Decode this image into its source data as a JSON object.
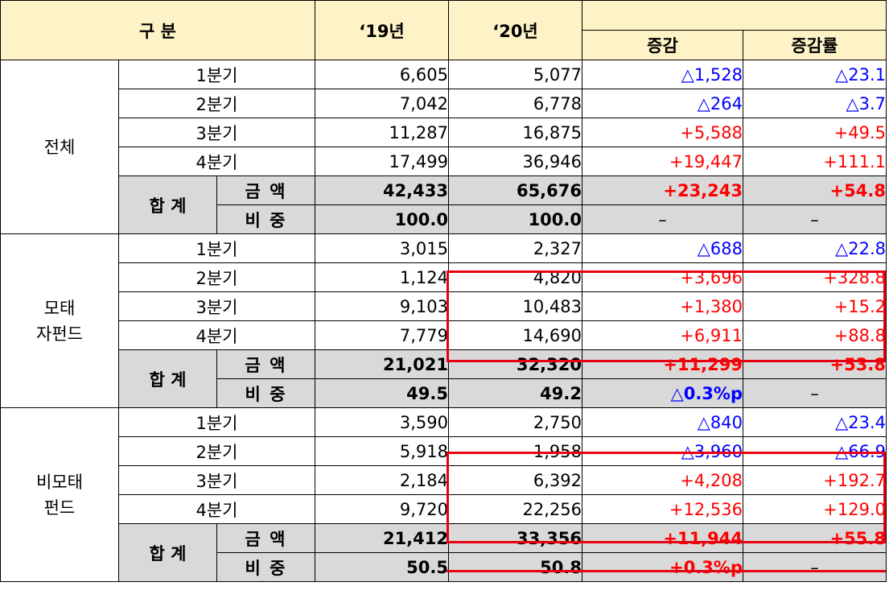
{
  "header": {
    "category": "구 분",
    "year19": "‘19년",
    "year20": "‘20년",
    "change": "증감",
    "change_rate": "증감률"
  },
  "sum_label": "합 계",
  "amount_label": "금 액",
  "share_label": "비 중",
  "groups": [
    {
      "name": "전체",
      "quarters": [
        {
          "label": "1분기",
          "y19": "6,605",
          "y20": "5,077",
          "chg": "△1,528",
          "rate": "△23.1"
        },
        {
          "label": "2분기",
          "y19": "7,042",
          "y20": "6,778",
          "chg": "△264",
          "rate": "△3.7"
        },
        {
          "label": "3분기",
          "y19": "11,287",
          "y20": "16,875",
          "chg": "+5,588",
          "rate": "+49.5"
        },
        {
          "label": "4분기",
          "y19": "17,499",
          "y20": "36,946",
          "chg": "+19,447",
          "rate": "+111.1"
        }
      ],
      "amount": {
        "y19": "42,433",
        "y20": "65,676",
        "chg": "+23,243",
        "rate": "+54.8"
      },
      "share": {
        "y19": "100.0",
        "y20": "100.0",
        "chg": "–",
        "rate": "–"
      }
    },
    {
      "name_line1": "모태",
      "name_line2": "자펀드",
      "quarters": [
        {
          "label": "1분기",
          "y19": "3,015",
          "y20": "2,327",
          "chg": "△688",
          "rate": "△22.8"
        },
        {
          "label": "2분기",
          "y19": "1,124",
          "y20": "4,820",
          "chg": "+3,696",
          "rate": "+328.8"
        },
        {
          "label": "3분기",
          "y19": "9,103",
          "y20": "10,483",
          "chg": "+1,380",
          "rate": "+15.2"
        },
        {
          "label": "4분기",
          "y19": "7,779",
          "y20": "14,690",
          "chg": "+6,911",
          "rate": "+88.8"
        }
      ],
      "amount": {
        "y19": "21,021",
        "y20": "32,320",
        "chg": "+11,299",
        "rate": "+53.8"
      },
      "share": {
        "y19": "49.5",
        "y20": "49.2",
        "chg": "△0.3%p",
        "rate": "–"
      }
    },
    {
      "name_line1": "비모태",
      "name_line2": "펀드",
      "quarters": [
        {
          "label": "1분기",
          "y19": "3,590",
          "y20": "2,750",
          "chg": "△840",
          "rate": "△23.4"
        },
        {
          "label": "2분기",
          "y19": "5,918",
          "y20": "1,958",
          "chg": "△3,960",
          "rate": "△66.9"
        },
        {
          "label": "3분기",
          "y19": "2,184",
          "y20": "6,392",
          "chg": "+4,208",
          "rate": "+192.7"
        },
        {
          "label": "4분기",
          "y19": "9,720",
          "y20": "22,256",
          "chg": "+12,536",
          "rate": "+129.0"
        }
      ],
      "amount": {
        "y19": "21,412",
        "y20": "33,356",
        "chg": "+11,944",
        "rate": "+55.8"
      },
      "share": {
        "y19": "50.5",
        "y20": "50.8",
        "chg": "+0.3%p",
        "rate": "–"
      }
    }
  ],
  "colors": {
    "header_bg": "#fdf3c6",
    "sum_bg": "#d9d9d9",
    "decrease": "#0000ff",
    "increase": "#ff0000",
    "highlight": "#e60012"
  }
}
